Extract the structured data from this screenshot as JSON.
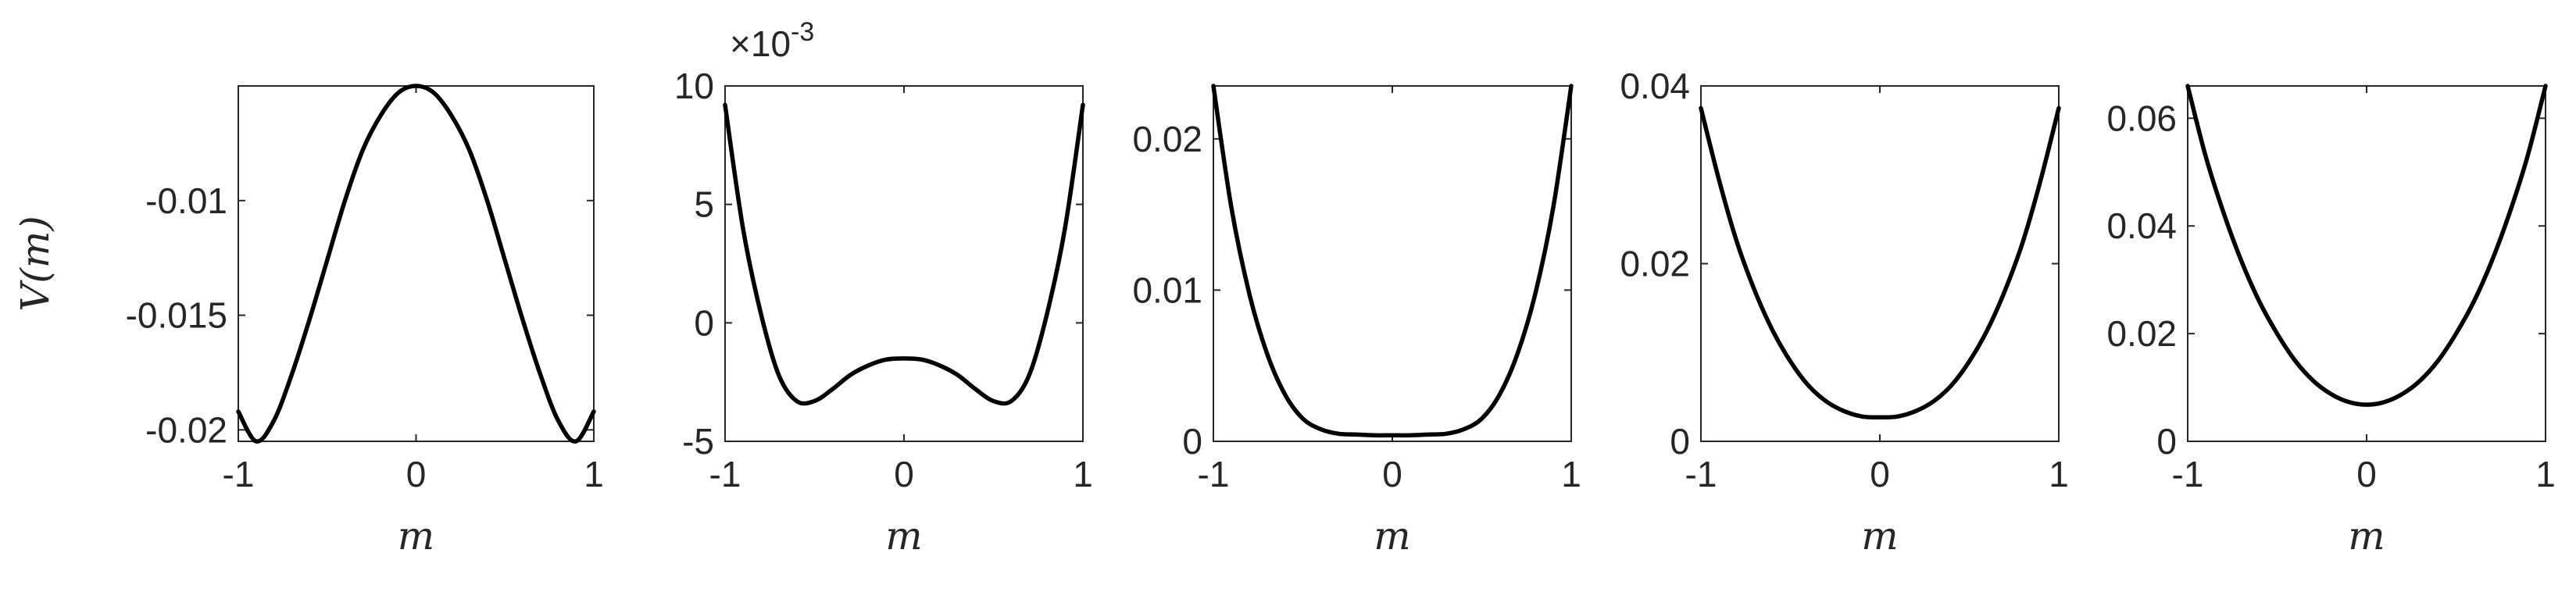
{
  "chart_data": [
    {
      "type": "line",
      "xlabel": "m",
      "ylabel": "V(m)",
      "xlim": [
        -1,
        1
      ],
      "ylim": [
        -0.0205,
        -0.005
      ],
      "xticks": [
        -1,
        0,
        1
      ],
      "xtick_labels": [
        "-1",
        "0",
        "1"
      ],
      "yticks": [
        -0.02,
        -0.015,
        -0.01
      ],
      "ytick_labels": [
        "-0.02",
        "-0.015",
        "-0.01"
      ],
      "exponent_label": "",
      "grid": false,
      "series": [
        {
          "x": [
            -1,
            -0.9,
            -0.8,
            -0.7,
            -0.6,
            -0.5,
            -0.4,
            -0.3,
            -0.2,
            -0.1,
            0,
            0.1,
            0.2,
            0.3,
            0.4,
            0.5,
            0.6,
            0.7,
            0.8,
            0.9,
            1
          ],
          "y": [
            -0.0192,
            -0.0205,
            -0.0196,
            -0.0176,
            -0.0152,
            -0.0126,
            -0.01,
            -0.0078,
            -0.0063,
            -0.0053,
            -0.005,
            -0.0053,
            -0.0063,
            -0.0078,
            -0.01,
            -0.0126,
            -0.0152,
            -0.0176,
            -0.0196,
            -0.0205,
            -0.0192
          ]
        }
      ]
    },
    {
      "type": "line",
      "xlabel": "m",
      "ylabel": "",
      "xlim": [
        -1,
        1
      ],
      "ylim": [
        -5,
        10
      ],
      "xticks": [
        -1,
        0,
        1
      ],
      "xtick_labels": [
        "-1",
        "0",
        "1"
      ],
      "yticks": [
        -5,
        0,
        5,
        10
      ],
      "ytick_labels": [
        "-5",
        "0",
        "5",
        "10"
      ],
      "exponent_label": "×10",
      "exponent_power": "-3",
      "grid": false,
      "series": [
        {
          "x": [
            -1,
            -0.9,
            -0.8,
            -0.7,
            -0.6,
            -0.5,
            -0.4,
            -0.3,
            -0.2,
            -0.1,
            0,
            0.1,
            0.2,
            0.3,
            0.4,
            0.5,
            0.6,
            0.7,
            0.8,
            0.9,
            1
          ],
          "y": [
            9.2,
            4.0,
            0.4,
            -2.2,
            -3.3,
            -3.3,
            -2.8,
            -2.2,
            -1.8,
            -1.55,
            -1.5,
            -1.55,
            -1.8,
            -2.2,
            -2.8,
            -3.3,
            -3.3,
            -2.2,
            0.4,
            4.0,
            9.2
          ]
        }
      ]
    },
    {
      "type": "line",
      "xlabel": "m",
      "ylabel": "",
      "xlim": [
        -1,
        1
      ],
      "ylim": [
        0,
        0.0235
      ],
      "xticks": [
        -1,
        0,
        1
      ],
      "xtick_labels": [
        "-1",
        "0",
        "1"
      ],
      "yticks": [
        0,
        0.01,
        0.02
      ],
      "ytick_labels": [
        "0",
        "0.01",
        "0.02"
      ],
      "exponent_label": "",
      "grid": false,
      "series": [
        {
          "x": [
            -1,
            -0.9,
            -0.8,
            -0.7,
            -0.6,
            -0.5,
            -0.4,
            -0.3,
            -0.2,
            -0.1,
            0,
            0.1,
            0.2,
            0.3,
            0.4,
            0.5,
            0.6,
            0.7,
            0.8,
            0.9,
            1
          ],
          "y": [
            0.0235,
            0.0155,
            0.0098,
            0.0058,
            0.0031,
            0.0015,
            0.0008,
            0.0005,
            0.00045,
            0.0004,
            0.0004,
            0.0004,
            0.00045,
            0.0005,
            0.0008,
            0.0015,
            0.0031,
            0.0058,
            0.0098,
            0.0155,
            0.0235
          ]
        }
      ]
    },
    {
      "type": "line",
      "xlabel": "m",
      "ylabel": "",
      "xlim": [
        -1,
        1
      ],
      "ylim": [
        0,
        0.04
      ],
      "xticks": [
        -1,
        0,
        1
      ],
      "xtick_labels": [
        "-1",
        "0",
        "1"
      ],
      "yticks": [
        0,
        0.02,
        0.04
      ],
      "ytick_labels": [
        "0",
        "0.02",
        "0.04"
      ],
      "exponent_label": "",
      "grid": false,
      "series": [
        {
          "x": [
            -1,
            -0.9,
            -0.8,
            -0.7,
            -0.6,
            -0.5,
            -0.4,
            -0.3,
            -0.2,
            -0.1,
            0,
            0.1,
            0.2,
            0.3,
            0.4,
            0.5,
            0.6,
            0.7,
            0.8,
            0.9,
            1
          ],
          "y": [
            0.0375,
            0.0295,
            0.0225,
            0.017,
            0.0125,
            0.009,
            0.0063,
            0.0045,
            0.0034,
            0.0028,
            0.0027,
            0.0028,
            0.0034,
            0.0045,
            0.0063,
            0.009,
            0.0125,
            0.017,
            0.0225,
            0.0295,
            0.0375
          ]
        }
      ]
    },
    {
      "type": "line",
      "xlabel": "m",
      "ylabel": "",
      "xlim": [
        -1,
        1
      ],
      "ylim": [
        0,
        0.066
      ],
      "xticks": [
        -1,
        0,
        1
      ],
      "xtick_labels": [
        "-1",
        "0",
        "1"
      ],
      "yticks": [
        0,
        0.02,
        0.04,
        0.06
      ],
      "ytick_labels": [
        "0",
        "0.02",
        "0.04",
        "0.06"
      ],
      "exponent_label": "",
      "grid": false,
      "series": [
        {
          "x": [
            -1,
            -0.9,
            -0.8,
            -0.7,
            -0.6,
            -0.5,
            -0.4,
            -0.3,
            -0.2,
            -0.1,
            0,
            0.1,
            0.2,
            0.3,
            0.4,
            0.5,
            0.6,
            0.7,
            0.8,
            0.9,
            1
          ],
          "y": [
            0.066,
            0.053,
            0.0425,
            0.0335,
            0.026,
            0.02,
            0.015,
            0.0113,
            0.0088,
            0.0073,
            0.0068,
            0.0073,
            0.0088,
            0.0113,
            0.015,
            0.02,
            0.026,
            0.0335,
            0.0425,
            0.053,
            0.066
          ]
        }
      ]
    }
  ]
}
